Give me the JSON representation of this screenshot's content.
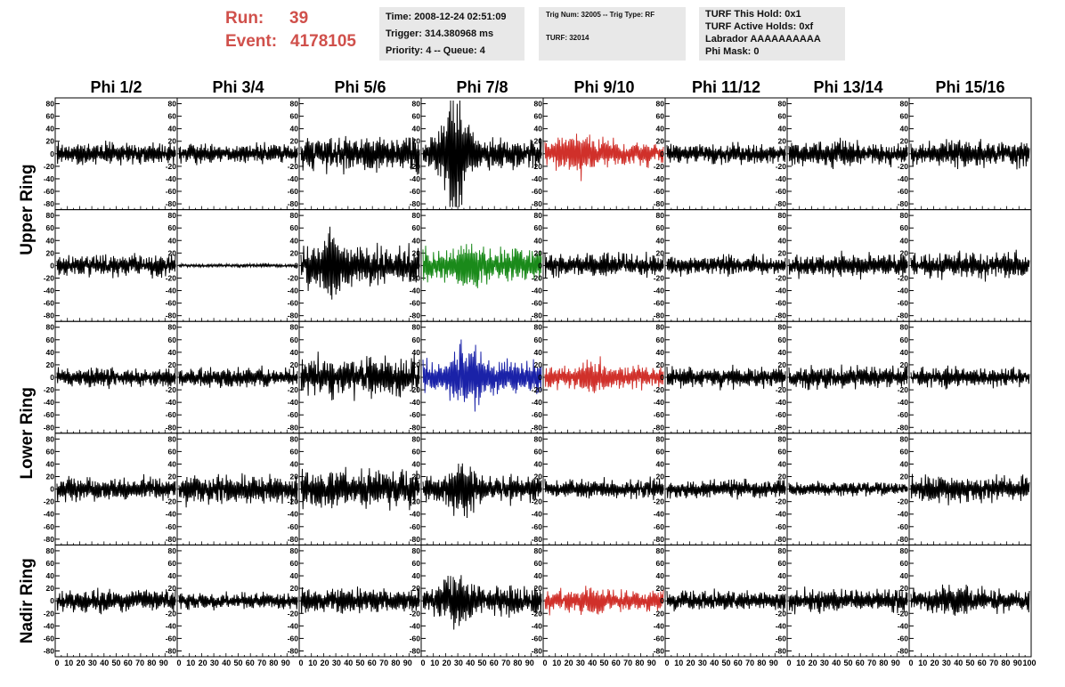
{
  "header": {
    "run_label": "Run:",
    "run_value": "39",
    "event_label": "Event:",
    "event_value": "4178105",
    "time": "Time: 2008-12-24 02:51:09",
    "trigger": "Trigger: 314.380968 ms",
    "priority": "Priority: 4 -- Queue: 4",
    "trig_num": "Trig Num: 32005 -- Trig Type: RF",
    "turf": "TURF: 32014",
    "turf_hold": "TURF This Hold: 0x1",
    "turf_active": "TURF Active Holds: 0xf",
    "labrador": "Labrador AAAAAAAAAA",
    "phi_mask": "Phi Mask: 0"
  },
  "chart_data": {
    "type": "line",
    "columns": [
      "Phi 1/2",
      "Phi 3/4",
      "Phi 5/6",
      "Phi 7/8",
      "Phi 9/10",
      "Phi 11/12",
      "Phi 13/14",
      "Phi 15/16"
    ],
    "ring_labels": [
      {
        "text": "Upper Ring",
        "rows": [
          0,
          1
        ]
      },
      {
        "text": "Lower Ring",
        "rows": [
          2,
          3
        ]
      },
      {
        "text": "Nadir Ring",
        "rows": [
          4
        ]
      }
    ],
    "xlim": [
      0,
      100
    ],
    "ylim": [
      -85,
      85
    ],
    "y_ticks": [
      80,
      60,
      40,
      20,
      0,
      -20,
      -40,
      -60,
      -80
    ],
    "x_ticks": [
      0,
      10,
      20,
      30,
      40,
      50,
      60,
      70,
      80,
      90,
      100
    ],
    "colors": {
      "normal": "#000000",
      "red": "#d0302a",
      "green": "#1a8a1a",
      "blue": "#1a22a8"
    },
    "panels": [
      [
        {
          "color": "normal",
          "amp": 14,
          "burst": 0
        },
        {
          "color": "normal",
          "amp": 12,
          "burst": 0
        },
        {
          "color": "normal",
          "amp": 22,
          "burst": 0
        },
        {
          "color": "normal",
          "amp": 18,
          "burst": 60
        },
        {
          "color": "red",
          "amp": 16,
          "burst": 12
        },
        {
          "color": "normal",
          "amp": 12,
          "burst": 0
        },
        {
          "color": "normal",
          "amp": 14,
          "burst": 6
        },
        {
          "color": "normal",
          "amp": 16,
          "burst": 0
        }
      ],
      [
        {
          "color": "normal",
          "amp": 14,
          "burst": 0
        },
        {
          "color": "normal",
          "amp": 2,
          "burst": 0
        },
        {
          "color": "normal",
          "amp": 24,
          "burst": 20
        },
        {
          "color": "green",
          "amp": 22,
          "burst": 12
        },
        {
          "color": "normal",
          "amp": 14,
          "burst": 0
        },
        {
          "color": "normal",
          "amp": 12,
          "burst": 0
        },
        {
          "color": "normal",
          "amp": 14,
          "burst": 0
        },
        {
          "color": "normal",
          "amp": 16,
          "burst": 0
        }
      ],
      [
        {
          "color": "normal",
          "amp": 12,
          "burst": 0
        },
        {
          "color": "normal",
          "amp": 12,
          "burst": 0
        },
        {
          "color": "normal",
          "amp": 24,
          "burst": 0
        },
        {
          "color": "blue",
          "amp": 22,
          "burst": 28
        },
        {
          "color": "red",
          "amp": 14,
          "burst": 8
        },
        {
          "color": "normal",
          "amp": 12,
          "burst": 0
        },
        {
          "color": "normal",
          "amp": 14,
          "burst": 0
        },
        {
          "color": "normal",
          "amp": 12,
          "burst": 0
        }
      ],
      [
        {
          "color": "normal",
          "amp": 14,
          "burst": 0
        },
        {
          "color": "normal",
          "amp": 18,
          "burst": 0
        },
        {
          "color": "normal",
          "amp": 24,
          "burst": 0
        },
        {
          "color": "normal",
          "amp": 16,
          "burst": 24
        },
        {
          "color": "normal",
          "amp": 12,
          "burst": 0
        },
        {
          "color": "normal",
          "amp": 12,
          "burst": 0
        },
        {
          "color": "normal",
          "amp": 8,
          "burst": 0
        },
        {
          "color": "normal",
          "amp": 16,
          "burst": 0
        }
      ],
      [
        {
          "color": "normal",
          "amp": 14,
          "burst": 0
        },
        {
          "color": "normal",
          "amp": 10,
          "burst": 0
        },
        {
          "color": "normal",
          "amp": 16,
          "burst": 0
        },
        {
          "color": "normal",
          "amp": 18,
          "burst": 20
        },
        {
          "color": "red",
          "amp": 14,
          "burst": 6
        },
        {
          "color": "normal",
          "amp": 12,
          "burst": 0
        },
        {
          "color": "normal",
          "amp": 14,
          "burst": 0
        },
        {
          "color": "normal",
          "amp": 14,
          "burst": 8
        }
      ]
    ]
  }
}
